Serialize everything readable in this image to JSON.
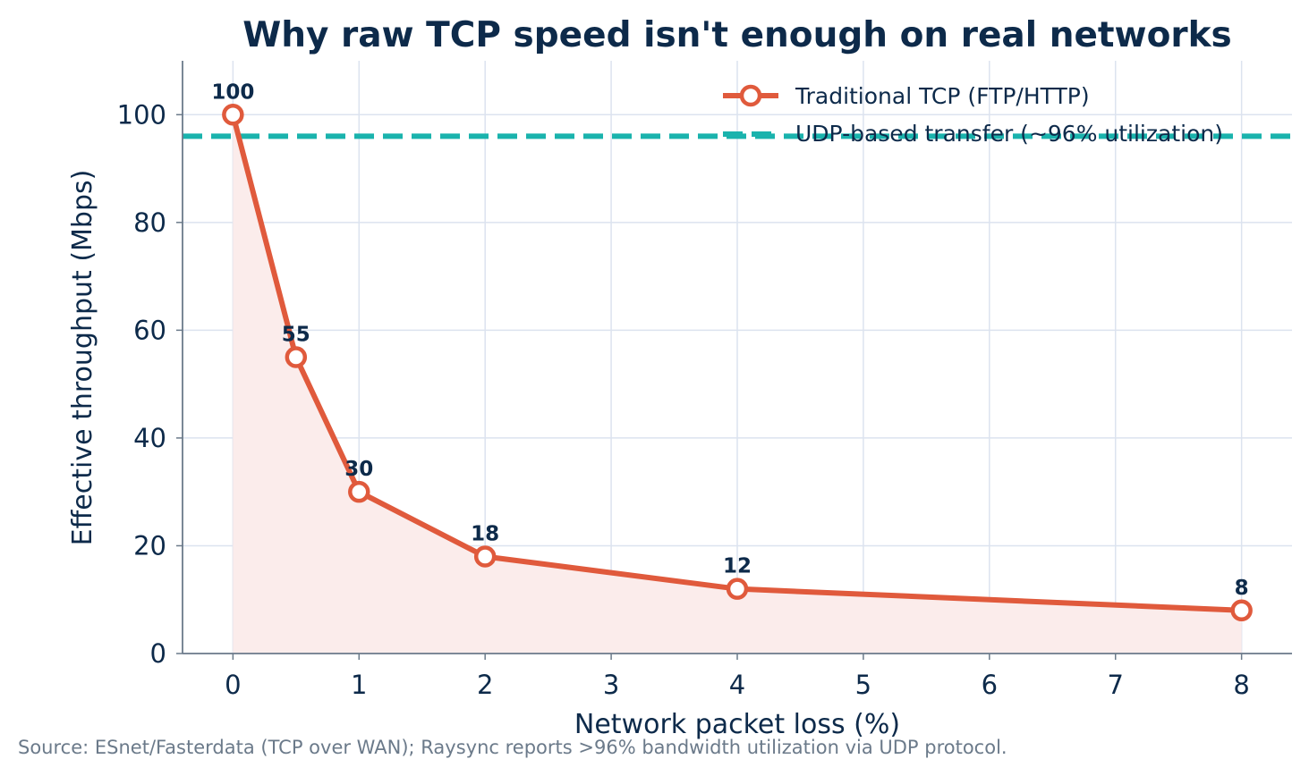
{
  "chart_data": {
    "type": "line",
    "title": "Why raw TCP speed isn't enough on real networks",
    "xlabel": "Network packet loss (%)",
    "ylabel": "Effective throughput (Mbps)",
    "xlim": [
      -0.4,
      8.4
    ],
    "ylim": [
      0,
      110
    ],
    "xticks": [
      0,
      1,
      2,
      3,
      4,
      5,
      6,
      7,
      8
    ],
    "yticks": [
      0,
      20,
      40,
      60,
      80,
      100
    ],
    "grid": true,
    "legend_position": "top-right",
    "series": [
      {
        "name": "Traditional TCP (FTP/HTTP)",
        "style": "solid line with hollow circle markers, shaded area below",
        "color": "#e05a3c",
        "x": [
          0,
          0.5,
          1,
          2,
          4,
          8
        ],
        "y": [
          100,
          55,
          30,
          18,
          12,
          8
        ],
        "data_labels": [
          "100",
          "55",
          "30",
          "18",
          "12",
          "8"
        ]
      },
      {
        "name": "UDP-based transfer (~96% utilization)",
        "style": "dashed horizontal line",
        "color": "#1ab3ad",
        "y_constant": 96
      }
    ],
    "source": "Source: ESnet/Fasterdata (TCP over WAN); Raysync reports >96% bandwidth utilization via UDP protocol."
  },
  "colors": {
    "title": "#0d2a4a",
    "tcp_line": "#e05a3c",
    "tcp_fill": "#fbeceb",
    "udp_line": "#1ab3ad",
    "grid": "#dce3ef",
    "axis": "#6b7a8a",
    "source": "#6b7a8a"
  }
}
